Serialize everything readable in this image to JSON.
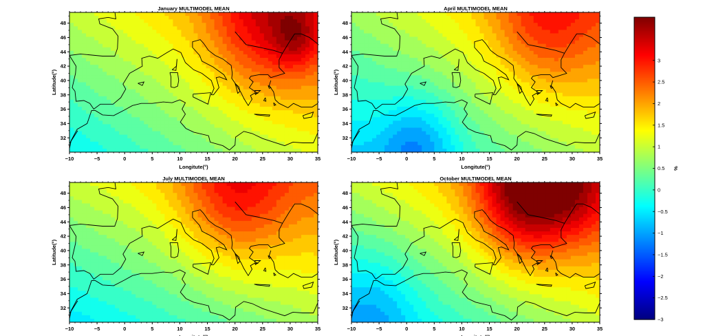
{
  "chart_data": {
    "type": "heatmap",
    "units": "%",
    "colorbar": {
      "label": "%",
      "range": [
        -3,
        4
      ],
      "ticks": [
        "3",
        "2.5",
        "2",
        "1.5",
        "1",
        "0.5",
        "0",
        "−0.5",
        "−1",
        "−1.5",
        "−2",
        "−2.5",
        "−3"
      ],
      "tick_values": [
        3,
        2.5,
        2,
        1.5,
        1,
        0.5,
        0,
        -0.5,
        -1,
        -1.5,
        -2,
        -2.5,
        -3
      ],
      "colormap": "jet",
      "colors": [
        "#00007f",
        "#0000ff",
        "#007fff",
        "#00ffff",
        "#7fff7f",
        "#ffff00",
        "#ff7f00",
        "#ff0000",
        "#7f0000"
      ]
    },
    "panels": [
      {
        "title": "January MULTIMODEL MEAN",
        "xlabel": "Longitute(°)",
        "ylabel": "Latitude(°)",
        "xlim": [
          -10,
          35
        ],
        "ylim": [
          30,
          49.5
        ],
        "xticks": [
          "−10",
          "−5",
          "0",
          "5",
          "10",
          "15",
          "20",
          "25",
          "30",
          "35"
        ],
        "yticks": [
          "32",
          "34",
          "36",
          "38",
          "40",
          "42",
          "44",
          "46",
          "48"
        ],
        "field": {
          "base": 0.7,
          "lon_grad": 0.035,
          "lat_grad": 0.07,
          "hotspots": [
            {
              "lon": 25,
              "lat": 48,
              "amp": 1.3,
              "spread": 7
            },
            {
              "lon": 31,
              "lat": 46,
              "amp": 0.9,
              "spread": 3
            }
          ]
        }
      },
      {
        "title": "April MULTIMODEL MEAN",
        "xlabel": "Longitute(°)",
        "ylabel": "Latitude(°)",
        "xlim": [
          -10,
          35
        ],
        "ylim": [
          30,
          49.5
        ],
        "xticks": [
          "−10",
          "−5",
          "0",
          "5",
          "10",
          "15",
          "20",
          "25",
          "30",
          "35"
        ],
        "yticks": [
          "32",
          "34",
          "36",
          "38",
          "40",
          "42",
          "44",
          "46",
          "48"
        ],
        "field": {
          "base": 0.45,
          "lon_grad": 0.035,
          "lat_grad": 0.07,
          "hotspots": [
            {
              "lon": 25,
              "lat": 48,
              "amp": 1.1,
              "spread": 7
            },
            {
              "lon": 2,
              "lat": 31,
              "amp": -1.0,
              "spread": 5
            }
          ]
        }
      },
      {
        "title": "July MULTIMODEL MEAN",
        "xlabel": "Longitute(°)",
        "ylabel": "Latitude(°)",
        "xlim": [
          -10,
          35
        ],
        "ylim": [
          30,
          49.5
        ],
        "xticks": [
          "−10",
          "−5",
          "0",
          "5",
          "10",
          "15",
          "20",
          "25",
          "30",
          "35"
        ],
        "yticks": [
          "32",
          "34",
          "36",
          "38",
          "40",
          "42",
          "44",
          "46",
          "48"
        ],
        "field": {
          "base": 0.55,
          "lon_grad": 0.03,
          "lat_grad": 0.08,
          "hotspots": [
            {
              "lon": 20,
              "lat": 48,
              "amp": 1.3,
              "spread": 7
            }
          ]
        }
      },
      {
        "title": "October MULTIMODEL MEAN",
        "xlabel": "Longitute(°)",
        "ylabel": "Latitude(°)",
        "xlim": [
          -10,
          35
        ],
        "ylim": [
          30,
          49.5
        ],
        "xticks": [
          "−10",
          "−5",
          "0",
          "5",
          "10",
          "15",
          "20",
          "25",
          "30",
          "35"
        ],
        "yticks": [
          "32",
          "34",
          "36",
          "38",
          "40",
          "42",
          "44",
          "46",
          "48"
        ],
        "field": {
          "base": 0.55,
          "lon_grad": 0.04,
          "lat_grad": 0.09,
          "hotspots": [
            {
              "lon": 22,
              "lat": 48,
              "amp": 2.3,
              "spread": 6.5
            },
            {
              "lon": 31,
              "lat": 47.5,
              "amp": 0.6,
              "spread": 4
            },
            {
              "lon": -5,
              "lat": 33,
              "amp": -0.5,
              "spread": 5
            }
          ]
        }
      }
    ]
  }
}
